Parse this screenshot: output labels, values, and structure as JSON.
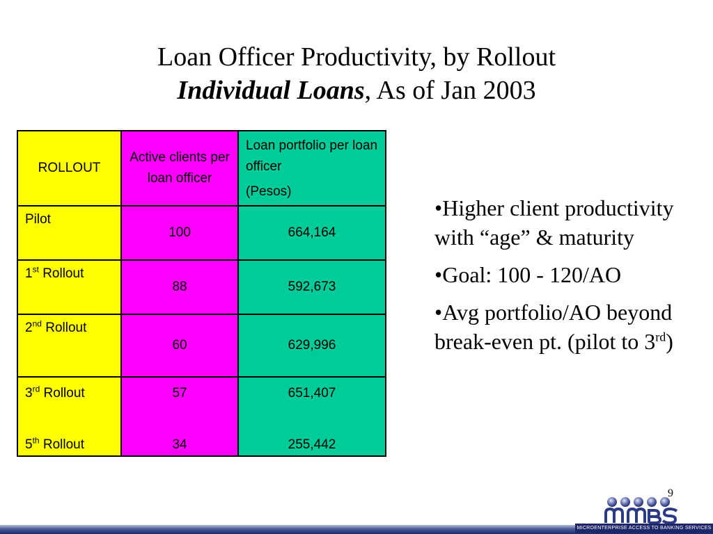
{
  "title": {
    "line1": "Loan Officer Productivity, by Rollout",
    "line2_italic": "Individual Loans",
    "line2_rest": ", As of Jan 2003"
  },
  "table": {
    "headers": {
      "rollout": "ROLLOUT",
      "active": "Active clients per loan officer",
      "portfolio_line1": "Loan portfolio per loan officer",
      "portfolio_line2": "(Pesos)"
    },
    "rows": [
      {
        "name": "Pilot",
        "ordinal": "",
        "suffix": "",
        "active": "100",
        "portfolio": "664,164"
      },
      {
        "name": "1",
        "ordinal": "st",
        "suffix": " Rollout",
        "active": "88",
        "portfolio": "592,673"
      },
      {
        "name": "2",
        "ordinal": "nd",
        "suffix": " Rollout",
        "active": "60",
        "portfolio": "629,996"
      },
      {
        "name": "3",
        "ordinal": "rd",
        "suffix": " Rollout",
        "active": "57",
        "portfolio": "651,407"
      },
      {
        "name": "5",
        "ordinal": "th",
        "suffix": " Rollout",
        "active": "34",
        "portfolio": "255,442"
      }
    ],
    "colors": {
      "rollout_col": "#ffff00",
      "active_col": "#ff00ff",
      "portfolio_col": "#00cc99"
    }
  },
  "bullets": [
    {
      "text": "•Higher client productivity with “age” & maturity"
    },
    {
      "text": "•Goal:  100 - 120/AO"
    },
    {
      "text_before": "•Avg portfolio/AO beyond break-even pt. (pilot to 3",
      "sup": "rd",
      "text_after": ")"
    }
  ],
  "page_number": "9",
  "logo": {
    "name": "mabs-logo",
    "tagline": "MICROENTERPRISE ACCESS TO BANKING SERVICES"
  }
}
